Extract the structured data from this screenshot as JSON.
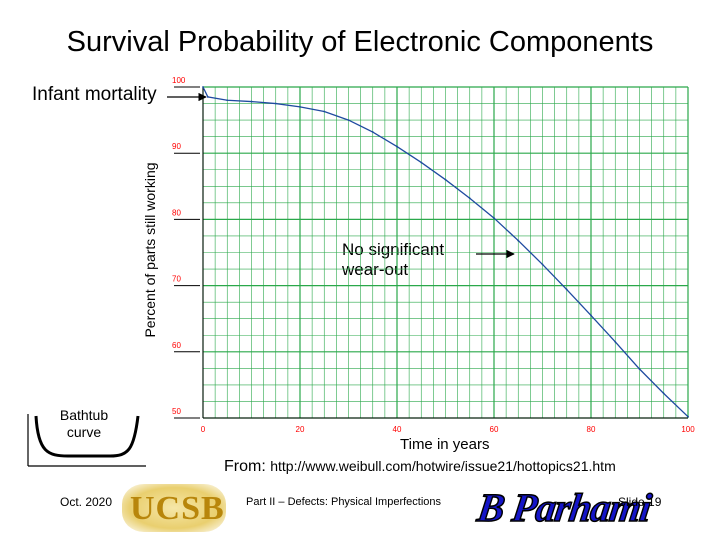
{
  "title": "Survival Probability of Electronic Components",
  "annotations": {
    "infant_mortality": "Infant mortality",
    "no_wearout_line1": "No significant",
    "no_wearout_line2": "wear-out",
    "bathtub_line1": "Bathtub",
    "bathtub_line2": "curve"
  },
  "source": {
    "prefix": "From:",
    "url": "http://www.weibull.com/hotwire/issue21/hottopics21.htm"
  },
  "footer": {
    "date": "Oct. 2020",
    "logo_text": "UCSB",
    "course": "Part II – Defects: Physical Imperfections",
    "signature": "B Parhami",
    "slide": "Slide 19"
  },
  "colors": {
    "grid": "#2aa84a",
    "curve": "#1f4aa0",
    "axis": "#000000",
    "tick_text": "#ff0000",
    "signature": "#1515c8",
    "logo": "#b8860b"
  },
  "chart_data": {
    "type": "line",
    "xlabel": "Time in years",
    "ylabel": "Percent of parts still working",
    "xlim": [
      0,
      100
    ],
    "ylim": [
      50,
      100
    ],
    "x_ticks": [
      0,
      20,
      40,
      60,
      80,
      100
    ],
    "y_ticks": [
      50,
      60,
      70,
      80,
      90,
      100
    ],
    "grid": true,
    "series": [
      {
        "x": [
          0,
          1,
          5,
          10,
          15,
          20,
          25,
          30,
          35,
          40,
          45,
          50,
          55,
          60,
          65,
          70,
          75,
          80,
          85,
          90,
          95,
          100
        ],
        "y": [
          100,
          98.5,
          98.0,
          97.8,
          97.5,
          97.0,
          96.3,
          95.0,
          93.2,
          91.0,
          88.6,
          86.0,
          83.2,
          80.2,
          76.8,
          73.2,
          69.4,
          65.5,
          61.5,
          57.4,
          53.7,
          50.2
        ]
      }
    ]
  }
}
